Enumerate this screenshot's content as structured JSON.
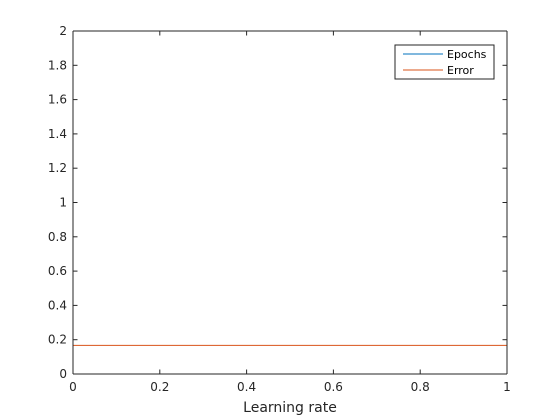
{
  "chart_data": {
    "type": "line",
    "xlabel": "Learning rate",
    "ylabel": "",
    "title": "",
    "xlim": [
      0,
      1
    ],
    "ylim": [
      0,
      2
    ],
    "xticks": [
      "0",
      "0.2",
      "0.4",
      "0.6",
      "0.8",
      "1"
    ],
    "yticks": [
      "0",
      "0.2",
      "0.4",
      "0.6",
      "0.8",
      "1",
      "1.2",
      "1.4",
      "1.6",
      "1.8",
      "2"
    ],
    "grid": false,
    "legend_position": "top-right",
    "series": [
      {
        "name": "Epochs",
        "color": "#0072BD",
        "x": [
          0,
          1
        ],
        "y": [
          2,
          2
        ]
      },
      {
        "name": "Error",
        "color": "#D95319",
        "x": [
          0,
          1
        ],
        "y": [
          0.167,
          0.167
        ]
      }
    ]
  }
}
